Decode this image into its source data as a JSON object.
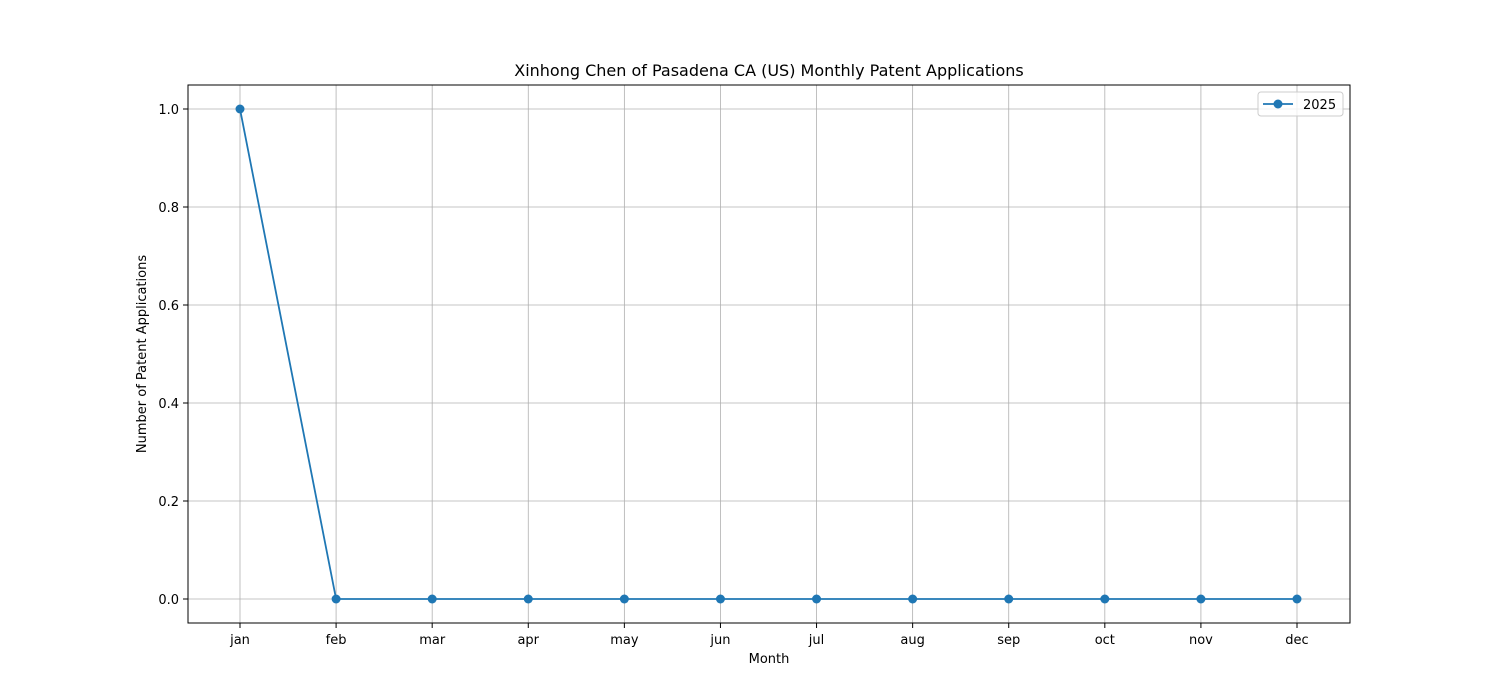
{
  "chart_data": {
    "type": "line",
    "title": "Xinhong Chen of Pasadena CA (US) Monthly Patent Applications",
    "xlabel": "Month",
    "ylabel": "Number of Patent Applications",
    "categories": [
      "jan",
      "feb",
      "mar",
      "apr",
      "may",
      "jun",
      "jul",
      "aug",
      "sep",
      "oct",
      "nov",
      "dec"
    ],
    "series": [
      {
        "name": "2025",
        "values": [
          1,
          0,
          0,
          0,
          0,
          0,
          0,
          0,
          0,
          0,
          0,
          0
        ],
        "color": "#1f77b4",
        "marker": "circle"
      }
    ],
    "ylim": [
      -0.05,
      1.05
    ],
    "yticks": [
      0.0,
      0.2,
      0.4,
      0.6,
      0.8,
      1.0
    ],
    "ytick_labels": [
      "0.0",
      "0.2",
      "0.4",
      "0.6",
      "0.8",
      "1.0"
    ],
    "grid": true,
    "legend_position": "top-right"
  }
}
